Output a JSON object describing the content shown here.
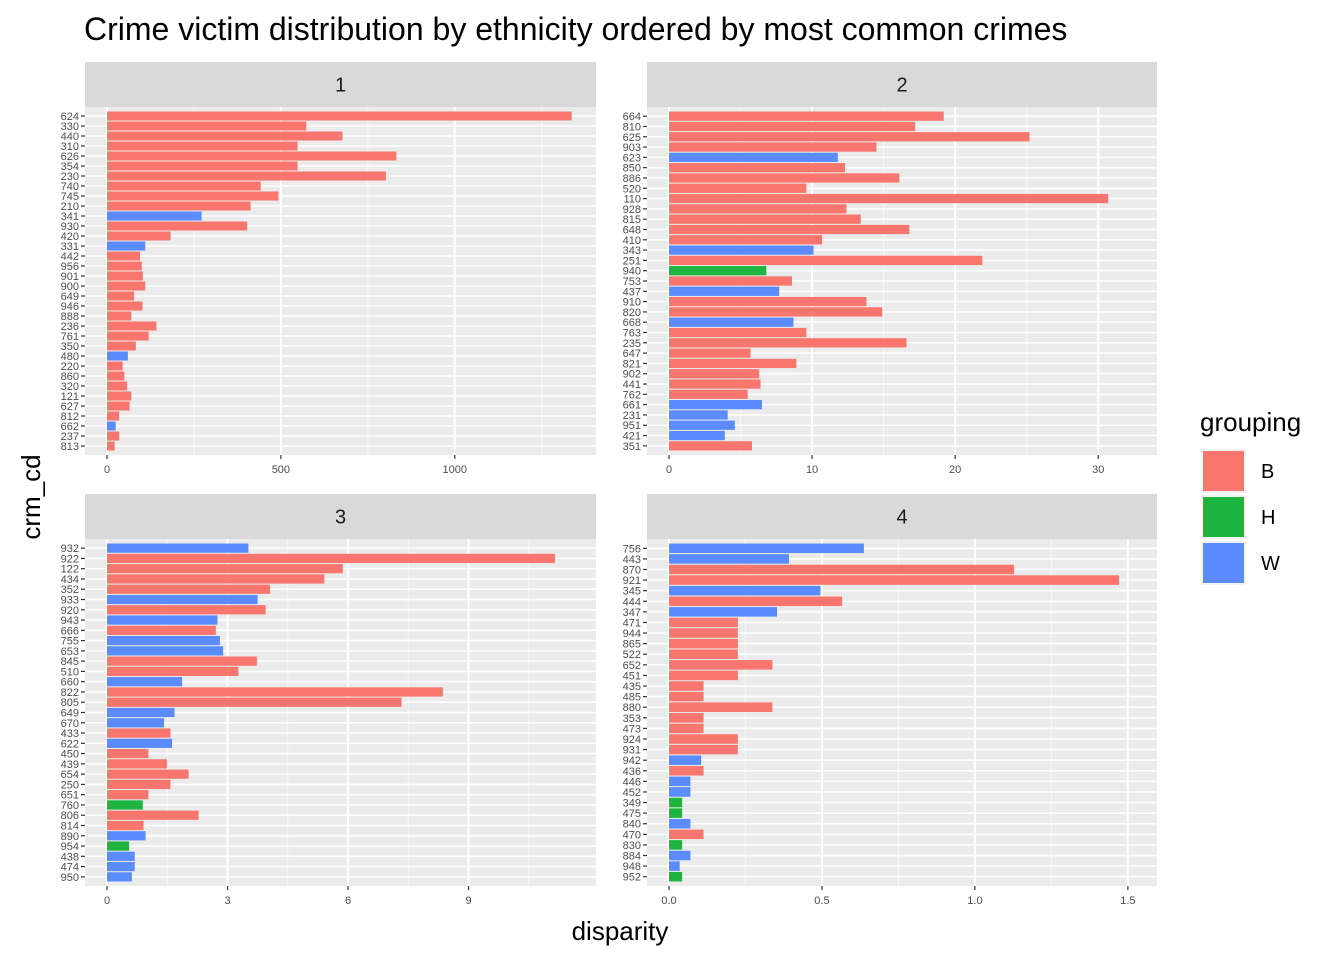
{
  "title": "Crime victim distribution by ethnicity ordered by most common crimes",
  "colors": {
    "B": "#f8766d",
    "H": "#1db43f",
    "W": "#5a8cff",
    "panel_bg": "#ebebeb",
    "strip_bg": "#d9d9d9",
    "grid": "#ffffff"
  },
  "chart_data": [
    {
      "type": "bar",
      "panel": "1",
      "xlim": [
        0,
        1340
      ],
      "xticks": [
        0,
        500,
        1000
      ],
      "tick_labels": [
        "0",
        "500",
        "1000"
      ],
      "minor_ticks": [
        250,
        750,
        1250
      ],
      "rows": [
        {
          "code": "624",
          "group": "B",
          "value": 1336
        },
        {
          "code": "330",
          "group": "B",
          "value": 573
        },
        {
          "code": "440",
          "group": "B",
          "value": 677
        },
        {
          "code": "310",
          "group": "B",
          "value": 548
        },
        {
          "code": "626",
          "group": "B",
          "value": 832
        },
        {
          "code": "354",
          "group": "B",
          "value": 548
        },
        {
          "code": "230",
          "group": "B",
          "value": 802
        },
        {
          "code": "740",
          "group": "B",
          "value": 442
        },
        {
          "code": "745",
          "group": "B",
          "value": 493
        },
        {
          "code": "210",
          "group": "B",
          "value": 413
        },
        {
          "code": "341",
          "group": "W",
          "value": 272
        },
        {
          "code": "930",
          "group": "B",
          "value": 403
        },
        {
          "code": "420",
          "group": "B",
          "value": 183
        },
        {
          "code": "331",
          "group": "W",
          "value": 110
        },
        {
          "code": "442",
          "group": "B",
          "value": 95
        },
        {
          "code": "956",
          "group": "B",
          "value": 100
        },
        {
          "code": "901",
          "group": "B",
          "value": 103
        },
        {
          "code": "900",
          "group": "B",
          "value": 110
        },
        {
          "code": "649",
          "group": "B",
          "value": 78
        },
        {
          "code": "946",
          "group": "B",
          "value": 102
        },
        {
          "code": "888",
          "group": "B",
          "value": 70
        },
        {
          "code": "236",
          "group": "B",
          "value": 142
        },
        {
          "code": "761",
          "group": "B",
          "value": 120
        },
        {
          "code": "350",
          "group": "B",
          "value": 83
        },
        {
          "code": "480",
          "group": "W",
          "value": 60
        },
        {
          "code": "220",
          "group": "B",
          "value": 45
        },
        {
          "code": "860",
          "group": "B",
          "value": 50
        },
        {
          "code": "320",
          "group": "B",
          "value": 58
        },
        {
          "code": "121",
          "group": "B",
          "value": 70
        },
        {
          "code": "627",
          "group": "B",
          "value": 65
        },
        {
          "code": "812",
          "group": "B",
          "value": 35
        },
        {
          "code": "662",
          "group": "W",
          "value": 25
        },
        {
          "code": "237",
          "group": "B",
          "value": 35
        },
        {
          "code": "813",
          "group": "B",
          "value": 22
        }
      ]
    },
    {
      "type": "bar",
      "panel": "2",
      "xlim": [
        0,
        32.5
      ],
      "xticks": [
        0,
        10,
        20,
        30
      ],
      "tick_labels": [
        "0",
        "10",
        "20",
        "30"
      ],
      "minor_ticks": [
        5,
        15,
        25
      ],
      "rows": [
        {
          "code": "664",
          "group": "B",
          "value": 19.2
        },
        {
          "code": "810",
          "group": "B",
          "value": 17.2
        },
        {
          "code": "625",
          "group": "B",
          "value": 25.2
        },
        {
          "code": "903",
          "group": "B",
          "value": 14.5
        },
        {
          "code": "623",
          "group": "W",
          "value": 11.8
        },
        {
          "code": "850",
          "group": "B",
          "value": 12.3
        },
        {
          "code": "886",
          "group": "B",
          "value": 16.1
        },
        {
          "code": "520",
          "group": "B",
          "value": 9.6
        },
        {
          "code": "110",
          "group": "B",
          "value": 30.7
        },
        {
          "code": "928",
          "group": "B",
          "value": 12.4
        },
        {
          "code": "815",
          "group": "B",
          "value": 13.4
        },
        {
          "code": "648",
          "group": "B",
          "value": 16.8
        },
        {
          "code": "410",
          "group": "B",
          "value": 10.7
        },
        {
          "code": "343",
          "group": "W",
          "value": 10.1
        },
        {
          "code": "251",
          "group": "B",
          "value": 21.9
        },
        {
          "code": "940",
          "group": "H",
          "value": 6.8
        },
        {
          "code": "753",
          "group": "B",
          "value": 8.6
        },
        {
          "code": "437",
          "group": "W",
          "value": 7.7
        },
        {
          "code": "910",
          "group": "B",
          "value": 13.8
        },
        {
          "code": "820",
          "group": "B",
          "value": 14.9
        },
        {
          "code": "668",
          "group": "W",
          "value": 8.7
        },
        {
          "code": "763",
          "group": "B",
          "value": 9.6
        },
        {
          "code": "235",
          "group": "B",
          "value": 16.6
        },
        {
          "code": "647",
          "group": "B",
          "value": 5.7
        },
        {
          "code": "821",
          "group": "B",
          "value": 8.9
        },
        {
          "code": "902",
          "group": "B",
          "value": 6.3
        },
        {
          "code": "441",
          "group": "B",
          "value": 6.4
        },
        {
          "code": "762",
          "group": "B",
          "value": 5.5
        },
        {
          "code": "661",
          "group": "W",
          "value": 6.5
        },
        {
          "code": "231",
          "group": "W",
          "value": 4.1
        },
        {
          "code": "951",
          "group": "W",
          "value": 4.6
        },
        {
          "code": "421",
          "group": "W",
          "value": 3.9
        },
        {
          "code": "351",
          "group": "B",
          "value": 5.8
        }
      ]
    },
    {
      "type": "bar",
      "panel": "3",
      "xlim": [
        0,
        11.6
      ],
      "xticks": [
        0,
        3,
        6,
        9
      ],
      "tick_labels": [
        "0",
        "3",
        "6",
        "9"
      ],
      "minor_ticks": [
        1.5,
        4.5,
        7.5,
        10.5
      ],
      "rows": [
        {
          "code": "932",
          "group": "W",
          "value": 3.52
        },
        {
          "code": "922",
          "group": "B",
          "value": 11.15
        },
        {
          "code": "122",
          "group": "B",
          "value": 5.87
        },
        {
          "code": "434",
          "group": "B",
          "value": 5.41
        },
        {
          "code": "352",
          "group": "B",
          "value": 4.06
        },
        {
          "code": "933",
          "group": "W",
          "value": 3.75
        },
        {
          "code": "920",
          "group": "B",
          "value": 3.95
        },
        {
          "code": "943",
          "group": "W",
          "value": 2.75
        },
        {
          "code": "666",
          "group": "B",
          "value": 2.71
        },
        {
          "code": "755",
          "group": "W",
          "value": 2.81
        },
        {
          "code": "653",
          "group": "W",
          "value": 2.89
        },
        {
          "code": "845",
          "group": "B",
          "value": 3.73
        },
        {
          "code": "510",
          "group": "B",
          "value": 3.27
        },
        {
          "code": "660",
          "group": "W",
          "value": 1.87
        },
        {
          "code": "822",
          "group": "B",
          "value": 8.36
        },
        {
          "code": "805",
          "group": "B",
          "value": 7.33
        },
        {
          "code": "649",
          "group": "W",
          "value": 1.68
        },
        {
          "code": "670",
          "group": "W",
          "value": 1.42
        },
        {
          "code": "433",
          "group": "B",
          "value": 1.58
        },
        {
          "code": "622",
          "group": "W",
          "value": 1.62
        },
        {
          "code": "450",
          "group": "B",
          "value": 1.03
        },
        {
          "code": "439",
          "group": "B",
          "value": 1.49
        },
        {
          "code": "654",
          "group": "B",
          "value": 2.03
        },
        {
          "code": "250",
          "group": "B",
          "value": 1.58
        },
        {
          "code": "651",
          "group": "B",
          "value": 1.03
        },
        {
          "code": "760",
          "group": "H",
          "value": 0.89
        },
        {
          "code": "806",
          "group": "B",
          "value": 2.28
        },
        {
          "code": "814",
          "group": "B",
          "value": 0.91
        },
        {
          "code": "890",
          "group": "W",
          "value": 0.96
        },
        {
          "code": "954",
          "group": "H",
          "value": 0.55
        },
        {
          "code": "438",
          "group": "W",
          "value": 0.69
        },
        {
          "code": "474",
          "group": "W",
          "value": 0.69
        },
        {
          "code": "950",
          "group": "W",
          "value": 0.62
        }
      ]
    },
    {
      "type": "bar",
      "panel": "4",
      "xlim": [
        0,
        1.52
      ],
      "xticks": [
        0,
        0.5,
        1.0,
        1.5
      ],
      "tick_labels": [
        "0.0",
        "0.5",
        "1.0",
        "1.5"
      ],
      "minor_ticks": [
        0.25,
        0.75,
        1.25
      ],
      "rows": [
        {
          "code": "756",
          "group": "W",
          "value": 0.637
        },
        {
          "code": "443",
          "group": "W",
          "value": 0.392
        },
        {
          "code": "870",
          "group": "B",
          "value": 1.128
        },
        {
          "code": "921",
          "group": "B",
          "value": 1.471
        },
        {
          "code": "345",
          "group": "W",
          "value": 0.495
        },
        {
          "code": "444",
          "group": "B",
          "value": 0.566
        },
        {
          "code": "347",
          "group": "W",
          "value": 0.353
        },
        {
          "code": "471",
          "group": "B",
          "value": 0.225
        },
        {
          "code": "944",
          "group": "B",
          "value": 0.225
        },
        {
          "code": "865",
          "group": "B",
          "value": 0.225
        },
        {
          "code": "522",
          "group": "B",
          "value": 0.225
        },
        {
          "code": "652",
          "group": "B",
          "value": 0.338
        },
        {
          "code": "451",
          "group": "B",
          "value": 0.225
        },
        {
          "code": "435",
          "group": "B",
          "value": 0.113
        },
        {
          "code": "485",
          "group": "B",
          "value": 0.113
        },
        {
          "code": "880",
          "group": "B",
          "value": 0.338
        },
        {
          "code": "353",
          "group": "B",
          "value": 0.113
        },
        {
          "code": "473",
          "group": "B",
          "value": 0.113
        },
        {
          "code": "924",
          "group": "B",
          "value": 0.225
        },
        {
          "code": "931",
          "group": "B",
          "value": 0.225
        },
        {
          "code": "942",
          "group": "W",
          "value": 0.105
        },
        {
          "code": "436",
          "group": "B",
          "value": 0.113
        },
        {
          "code": "446",
          "group": "W",
          "value": 0.07
        },
        {
          "code": "452",
          "group": "W",
          "value": 0.07
        },
        {
          "code": "349",
          "group": "H",
          "value": 0.043
        },
        {
          "code": "475",
          "group": "H",
          "value": 0.043
        },
        {
          "code": "840",
          "group": "W",
          "value": 0.07
        },
        {
          "code": "470",
          "group": "B",
          "value": 0.113
        },
        {
          "code": "830",
          "group": "H",
          "value": 0.043
        },
        {
          "code": "884",
          "group": "W",
          "value": 0.07
        },
        {
          "code": "948",
          "group": "W",
          "value": 0.035
        },
        {
          "code": "952",
          "group": "H",
          "value": 0.043
        }
      ]
    }
  ],
  "xlabel": "disparity",
  "ylabel": "crm_cd",
  "legend": {
    "title": "grouping",
    "placement": "right",
    "items": [
      {
        "key": "B",
        "label": "B"
      },
      {
        "key": "H",
        "label": "H"
      },
      {
        "key": "W",
        "label": "W"
      }
    ]
  }
}
